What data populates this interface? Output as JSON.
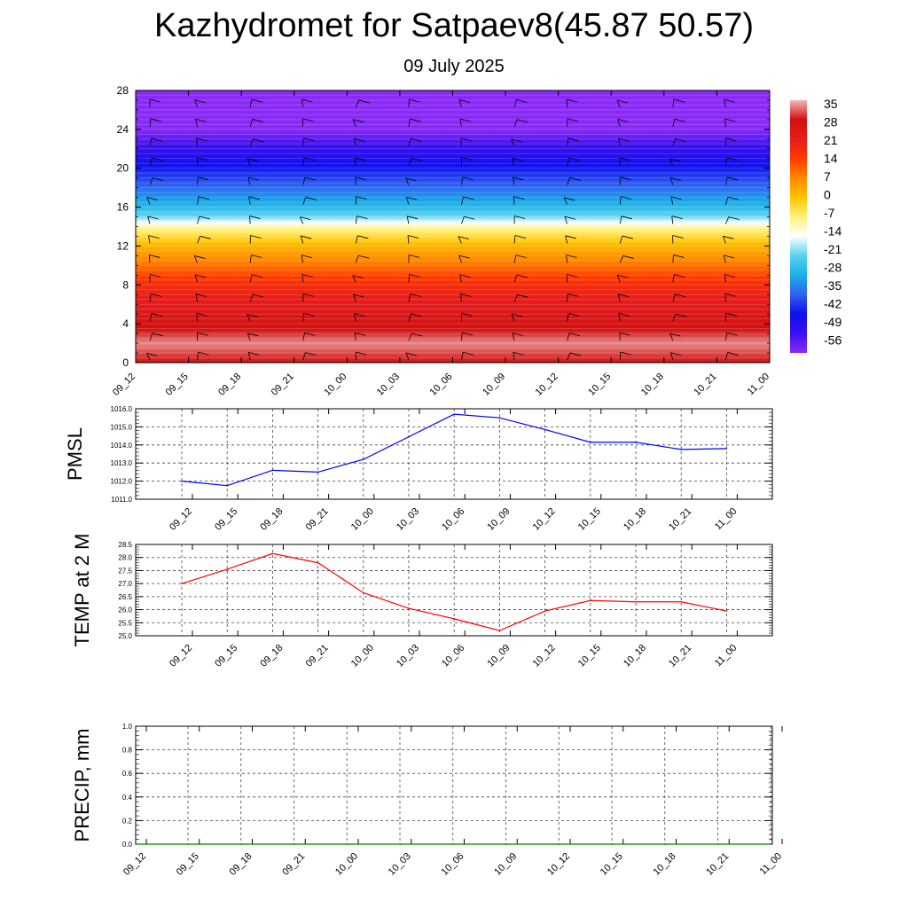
{
  "title": "Kazhydromet for Satpaev8(45.87 50.57)",
  "subtitle": "09 July 2025",
  "chart_data": [
    {
      "type": "heatmap",
      "panel": "upper-air temperature and wind",
      "x_ticks": [
        "09_12",
        "09_15",
        "09_18",
        "09_21",
        "10_00",
        "10_03",
        "10_06",
        "10_09",
        "10_12",
        "10_15",
        "10_18",
        "10_21",
        "11_00"
      ],
      "y_ticks": [
        0,
        4,
        8,
        12,
        16,
        20,
        24,
        28
      ],
      "ylim": [
        0,
        28
      ],
      "colorbar_labels": [
        "35",
        "28",
        "21",
        "14",
        "7",
        "0",
        "-7",
        "-14",
        "-21",
        "-28",
        "-35",
        "-42",
        "-49",
        "-56"
      ],
      "colorbar_stops": [
        {
          "value": 35,
          "color": "#f2b8b8"
        },
        {
          "value": 28,
          "color": "#d01010"
        },
        {
          "value": 21,
          "color": "#e61c1c"
        },
        {
          "value": 14,
          "color": "#ff3a00"
        },
        {
          "value": 7,
          "color": "#ff8a00"
        },
        {
          "value": 0,
          "color": "#ffc400"
        },
        {
          "value": -7,
          "color": "#fff27a"
        },
        {
          "value": -14,
          "color": "#ffffff"
        },
        {
          "value": -21,
          "color": "#5ad2f0"
        },
        {
          "value": -28,
          "color": "#1aaee8"
        },
        {
          "value": -35,
          "color": "#3060f0"
        },
        {
          "value": -42,
          "color": "#1010ee"
        },
        {
          "value": -49,
          "color": "#3a10f0"
        },
        {
          "value": -56,
          "color": "#8a2af6"
        }
      ],
      "temperature_by_height": [
        {
          "h": 0,
          "t": 28
        },
        {
          "h": 2,
          "t": 33
        },
        {
          "h": 4,
          "t": 26
        },
        {
          "h": 6,
          "t": 22
        },
        {
          "h": 8,
          "t": 17
        },
        {
          "h": 10,
          "t": 9
        },
        {
          "h": 12,
          "t": 2
        },
        {
          "h": 13.8,
          "t": -8
        },
        {
          "h": 15,
          "t": -20
        },
        {
          "h": 16,
          "t": -26
        },
        {
          "h": 18,
          "t": -34
        },
        {
          "h": 20,
          "t": -41
        },
        {
          "h": 22,
          "t": -48
        },
        {
          "h": 24,
          "t": -56
        },
        {
          "h": 28,
          "t": -58
        }
      ],
      "wind_barb_levels": [
        1,
        3,
        5,
        7,
        9,
        11,
        13,
        15,
        17,
        19,
        21,
        23,
        25,
        27
      ]
    },
    {
      "type": "line",
      "ylabel": "PMSL",
      "x": [
        "09_12",
        "09_15",
        "09_18",
        "09_21",
        "10_00",
        "10_03",
        "10_06",
        "10_09",
        "10_12",
        "10_15",
        "10_18",
        "10_21",
        "11_00"
      ],
      "values": [
        1012.0,
        1011.75,
        1012.6,
        1012.5,
        1013.2,
        1014.45,
        1015.7,
        1015.5,
        1014.85,
        1014.15,
        1014.15,
        1013.75,
        1013.8
      ],
      "y_ticks": [
        "1011.0",
        "1012.0",
        "1013.0",
        "1014.0",
        "1015.0",
        "1016.0"
      ],
      "ylim": [
        1011,
        1016
      ],
      "color": "#0000ff"
    },
    {
      "type": "line",
      "ylabel": "TEMP at 2 M",
      "x": [
        "09_12",
        "09_15",
        "09_18",
        "09_21",
        "10_00",
        "10_03",
        "10_06",
        "10_09",
        "10_12",
        "10_15",
        "10_18",
        "10_21",
        "11_00"
      ],
      "values": [
        27.0,
        27.55,
        28.15,
        27.8,
        26.65,
        26.05,
        25.65,
        25.2,
        25.95,
        26.35,
        26.3,
        26.3,
        25.95
      ],
      "y_ticks": [
        "25.0",
        "25.5",
        "26.0",
        "26.5",
        "27.0",
        "27.5",
        "28.0",
        "28.5"
      ],
      "ylim": [
        25,
        28.5
      ],
      "color": "#ff0000"
    },
    {
      "type": "line",
      "ylabel": "PRECIP, mm",
      "x": [
        "09_12",
        "09_15",
        "09_18",
        "09_21",
        "10_00",
        "10_03",
        "10_06",
        "10_09",
        "10_12",
        "10_15",
        "10_18",
        "10_21",
        "11_00"
      ],
      "values": [
        0,
        0,
        0,
        0,
        0,
        0,
        0,
        0,
        0,
        0,
        0,
        0,
        0
      ],
      "y_ticks": [
        "0.0",
        "0.2",
        "0.4",
        "0.6",
        "0.8",
        "1.0"
      ],
      "ylim": [
        0,
        1
      ],
      "color": "#008000"
    }
  ]
}
